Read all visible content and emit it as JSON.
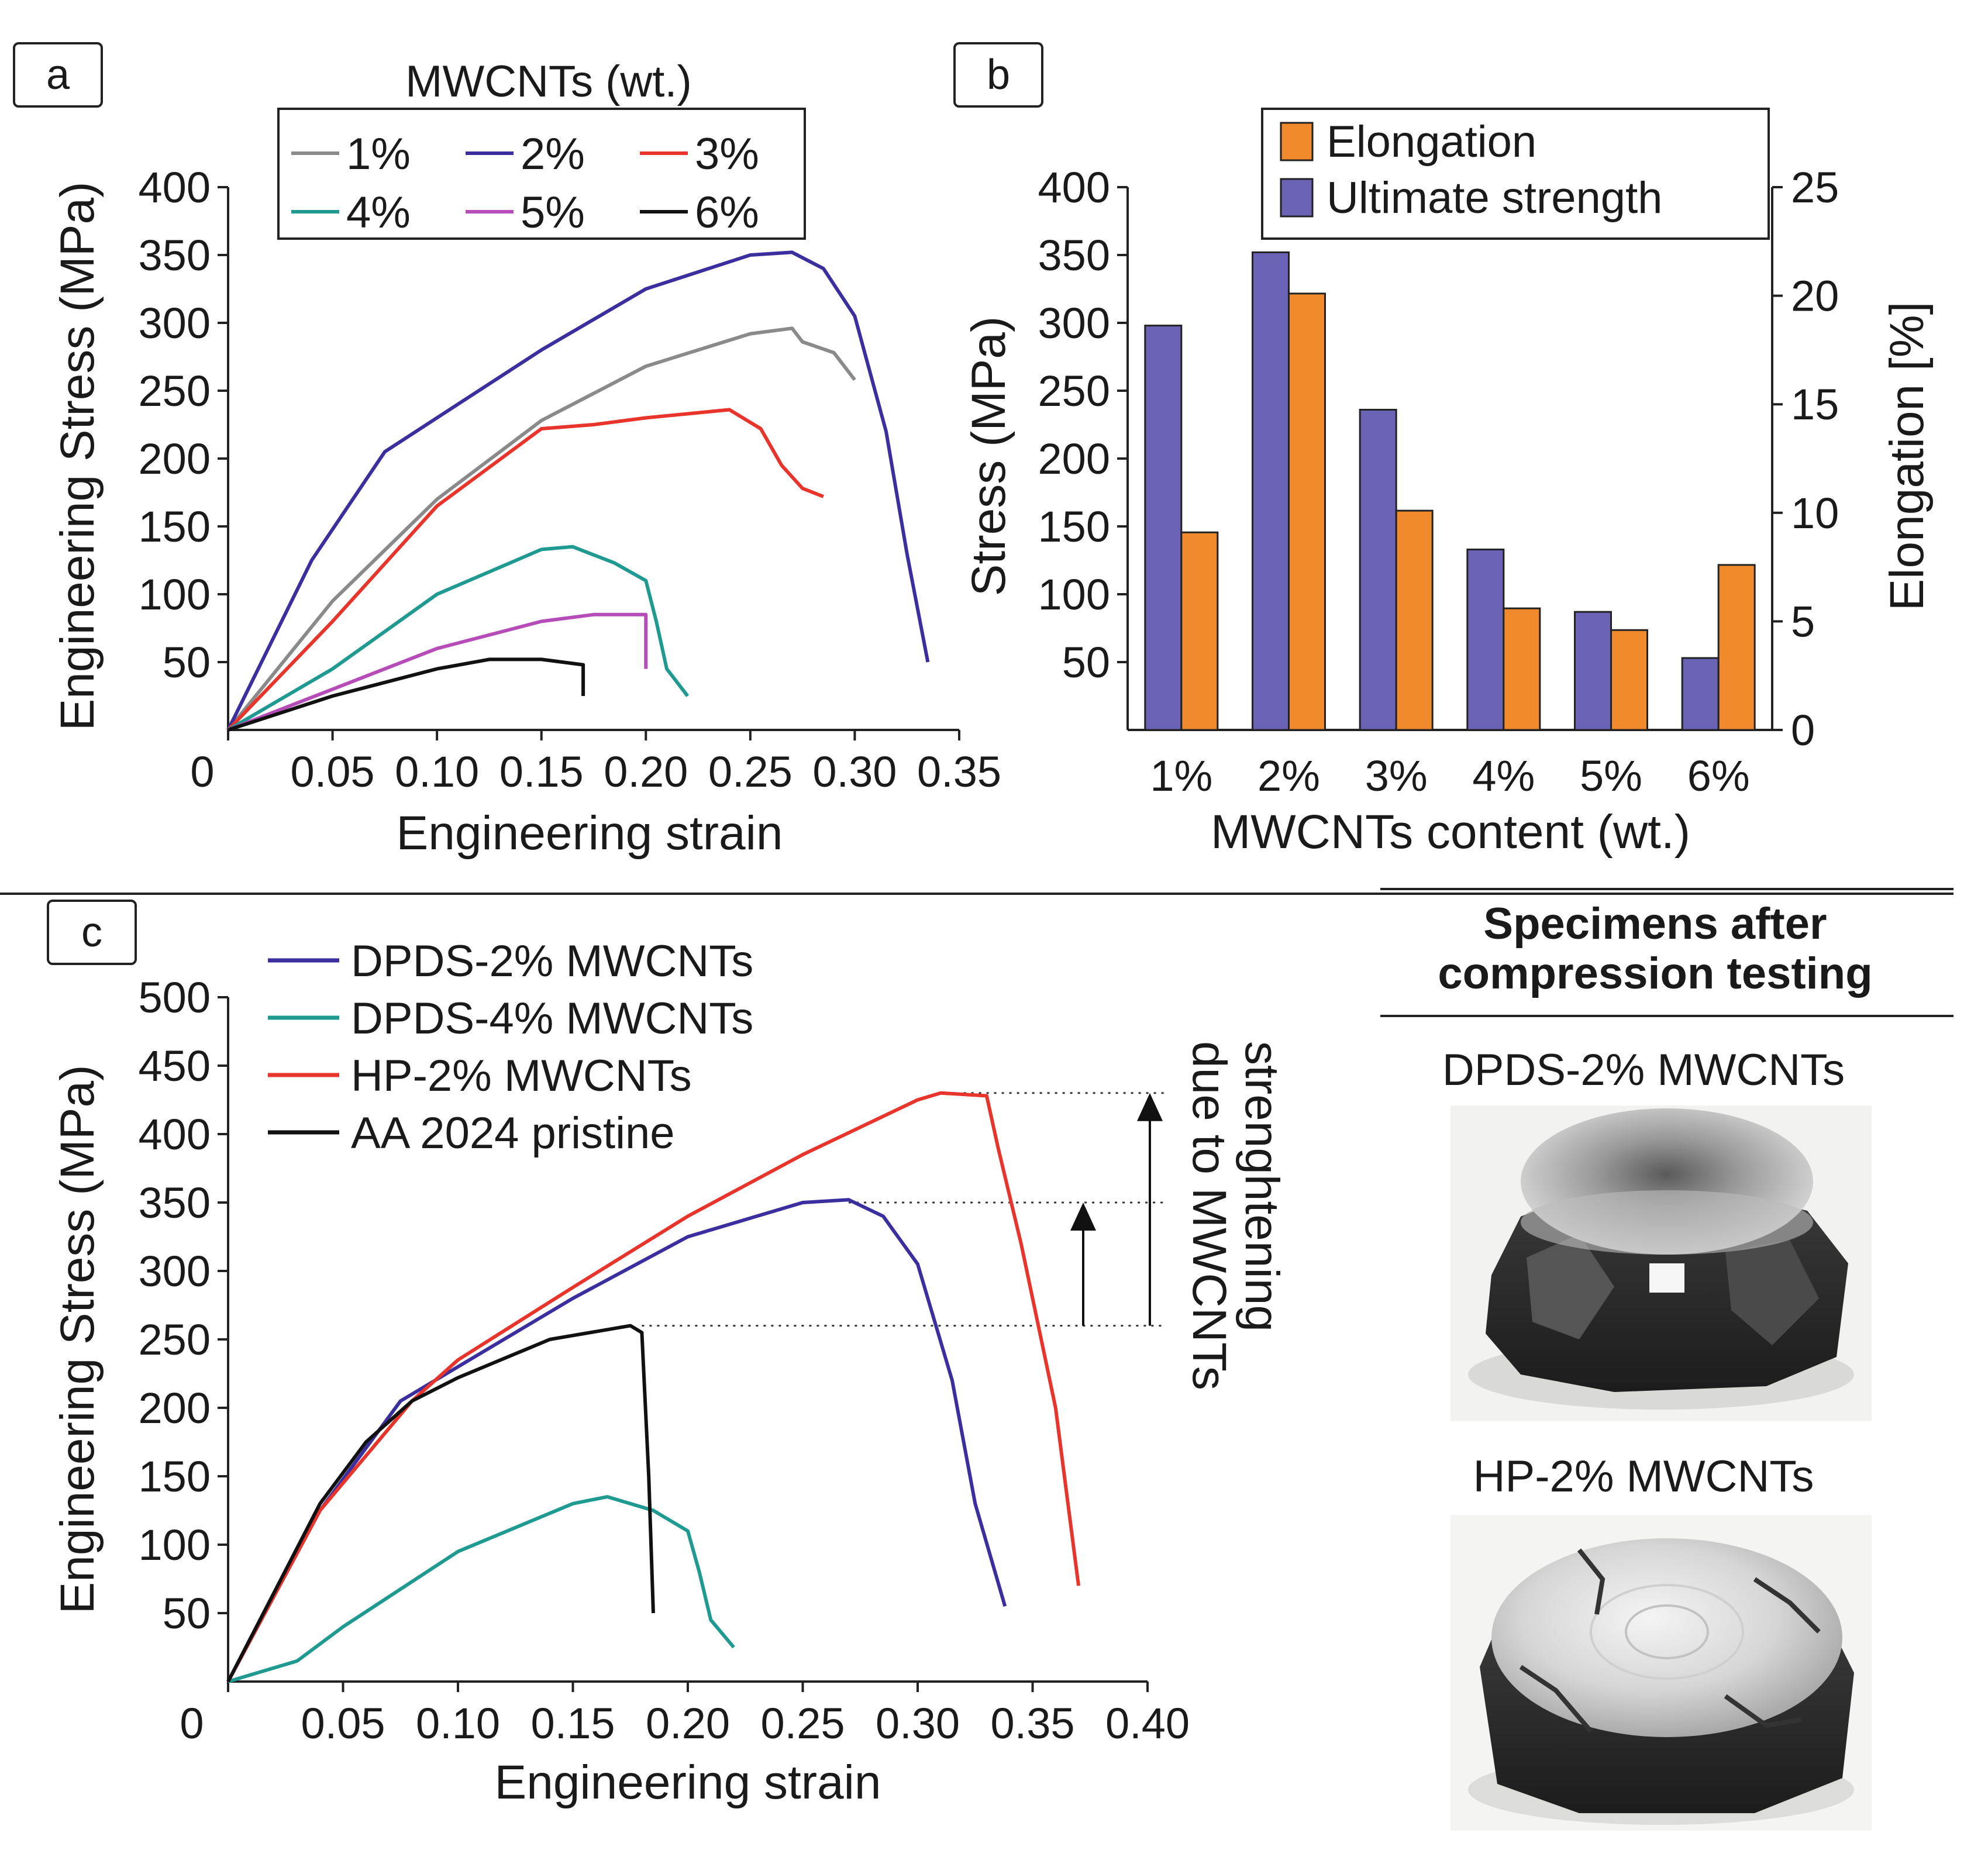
{
  "colors": {
    "gray": "#8a8a8a",
    "blue": "#3b2e9e",
    "red": "#e8342b",
    "teal": "#1f9a90",
    "magenta": "#b64cb8",
    "black": "#111111",
    "bar_blue": "#6a63b5",
    "bar_orange": "#f08a2c"
  },
  "chart_data": [
    {
      "panel": "a",
      "type": "line",
      "xlabel": "Engineering strain",
      "ylabel": "Engineering Stress (MPa)",
      "xlim": [
        0,
        0.35
      ],
      "ylim": [
        0,
        400
      ],
      "xticks": [
        "0",
        "0.05",
        "0.10",
        "0.15",
        "0.20",
        "0.25",
        "0.30",
        "0.35"
      ],
      "yticks": [
        "50",
        "100",
        "150",
        "200",
        "250",
        "300",
        "350",
        "400"
      ],
      "legend_title": "MWCNTs (wt.)",
      "legend_position": "top-right",
      "series": [
        {
          "name": "1%",
          "color": "gray",
          "x": [
            0,
            0.05,
            0.1,
            0.15,
            0.2,
            0.25,
            0.27,
            0.275,
            0.29,
            0.3
          ],
          "y": [
            0,
            95,
            170,
            228,
            268,
            292,
            296,
            286,
            278,
            258
          ]
        },
        {
          "name": "2%",
          "color": "blue",
          "x": [
            0,
            0.04,
            0.075,
            0.1,
            0.15,
            0.2,
            0.25,
            0.27,
            0.285,
            0.3,
            0.315,
            0.325,
            0.335
          ],
          "y": [
            0,
            125,
            205,
            230,
            280,
            325,
            350,
            352,
            340,
            305,
            220,
            130,
            50
          ]
        },
        {
          "name": "3%",
          "color": "red",
          "x": [
            0,
            0.05,
            0.1,
            0.15,
            0.175,
            0.2,
            0.24,
            0.255,
            0.265,
            0.275,
            0.285
          ],
          "y": [
            0,
            80,
            165,
            222,
            225,
            230,
            236,
            222,
            195,
            178,
            172
          ]
        },
        {
          "name": "4%",
          "color": "teal",
          "x": [
            0,
            0.05,
            0.1,
            0.15,
            0.165,
            0.185,
            0.2,
            0.205,
            0.21,
            0.22
          ],
          "y": [
            0,
            45,
            100,
            133,
            135,
            123,
            110,
            80,
            45,
            25
          ]
        },
        {
          "name": "5%",
          "color": "magenta",
          "x": [
            0,
            0.05,
            0.1,
            0.15,
            0.175,
            0.2,
            0.2
          ],
          "y": [
            0,
            30,
            60,
            80,
            85,
            85,
            45
          ]
        },
        {
          "name": "6%",
          "color": "black",
          "x": [
            0,
            0.05,
            0.1,
            0.125,
            0.15,
            0.17,
            0.17
          ],
          "y": [
            0,
            25,
            45,
            52,
            52,
            48,
            25
          ]
        }
      ]
    },
    {
      "panel": "b",
      "type": "bar",
      "xlabel": "MWCNTs content (wt.)",
      "ylabel": "Stress (MPa)",
      "y2label": "Elongation [%]",
      "categories": [
        "1%",
        "2%",
        "3%",
        "4%",
        "5%",
        "6%"
      ],
      "ylim": [
        0,
        400
      ],
      "y2lim": [
        0,
        25
      ],
      "yticks": [
        "50",
        "100",
        "150",
        "200",
        "250",
        "300",
        "350",
        "400"
      ],
      "y2ticks": [
        "0",
        "5",
        "10",
        "15",
        "20",
        "25"
      ],
      "legend_position": "top-right",
      "series": [
        {
          "name": "Ultimate strength",
          "axis": "left",
          "color": "bar_blue",
          "values": [
            298,
            352,
            236,
            133,
            87,
            53
          ]
        },
        {
          "name": "Elongation",
          "axis": "right",
          "color": "bar_orange",
          "values": [
            9.1,
            20.1,
            10.1,
            5.6,
            4.6,
            7.6
          ]
        }
      ]
    },
    {
      "panel": "c",
      "type": "line",
      "xlabel": "Engineering strain",
      "ylabel": "Engineering Stress (MPa)",
      "xlim": [
        0,
        0.4
      ],
      "ylim": [
        0,
        500
      ],
      "xticks": [
        "0",
        "0.05",
        "0.10",
        "0.15",
        "0.20",
        "0.25",
        "0.30",
        "0.35",
        "0.40"
      ],
      "yticks": [
        "50",
        "100",
        "150",
        "200",
        "250",
        "300",
        "350",
        "400",
        "450",
        "500"
      ],
      "legend_position": "top-left",
      "annotation": {
        "lines": [
          "strenghtening",
          "due to MWCNTs"
        ],
        "levels": [
          260,
          350,
          430
        ]
      },
      "series": [
        {
          "name": "DPDS-2% MWCNTs",
          "color": "blue",
          "x": [
            0,
            0.04,
            0.075,
            0.1,
            0.15,
            0.2,
            0.25,
            0.27,
            0.285,
            0.3,
            0.315,
            0.325,
            0.338
          ],
          "y": [
            0,
            125,
            205,
            230,
            280,
            325,
            350,
            352,
            340,
            305,
            220,
            130,
            55
          ]
        },
        {
          "name": "DPDS-4% MWCNTs",
          "color": "teal",
          "x": [
            0,
            0.03,
            0.05,
            0.1,
            0.15,
            0.165,
            0.185,
            0.2,
            0.205,
            0.21,
            0.22
          ],
          "y": [
            0,
            15,
            40,
            95,
            130,
            135,
            125,
            110,
            80,
            45,
            25
          ]
        },
        {
          "name": "HP-2% MWCNTs",
          "color": "red",
          "x": [
            0,
            0.04,
            0.08,
            0.1,
            0.15,
            0.2,
            0.25,
            0.3,
            0.31,
            0.33,
            0.335,
            0.345,
            0.36,
            0.37
          ],
          "y": [
            0,
            125,
            205,
            235,
            288,
            340,
            385,
            425,
            430,
            428,
            390,
            320,
            200,
            70
          ]
        },
        {
          "name": "AA 2024 pristine",
          "color": "black",
          "x": [
            0,
            0.04,
            0.06,
            0.08,
            0.1,
            0.14,
            0.175,
            0.18,
            0.183,
            0.185
          ],
          "y": [
            0,
            130,
            175,
            205,
            222,
            250,
            260,
            255,
            150,
            50
          ]
        }
      ]
    }
  ],
  "panel_labels": {
    "a": "a",
    "b": "b",
    "c": "c"
  },
  "photos": {
    "title_line1": "Specimens after",
    "title_line2": "compression testing",
    "label_top": "DPDS-2% MWCNTs",
    "label_bottom": "HP-2% MWCNTs"
  }
}
